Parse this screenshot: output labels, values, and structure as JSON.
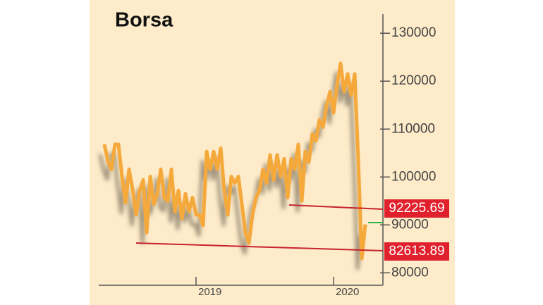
{
  "chart_data": {
    "type": "line",
    "title": "Borsa",
    "categories": [
      null,
      null,
      null,
      null,
      null,
      null,
      null,
      null,
      null,
      null,
      null,
      null,
      null,
      null,
      null,
      null,
      null,
      null,
      null,
      null,
      null,
      null,
      null,
      null,
      null,
      null,
      "2019",
      null,
      null,
      null,
      null,
      null,
      null,
      null,
      null,
      null,
      null,
      null,
      null,
      null,
      null,
      null,
      null,
      null,
      null,
      null,
      null,
      null,
      null,
      null,
      null,
      null,
      null,
      null,
      null,
      null,
      null,
      null,
      null,
      null,
      null,
      null,
      null,
      null,
      null,
      "2020",
      null,
      null,
      null,
      null,
      null,
      null,
      null,
      null,
      null
    ],
    "values": [
      106800,
      103400,
      101600,
      106800,
      106800,
      100100,
      94600,
      101600,
      97500,
      92100,
      97200,
      99400,
      88400,
      100100,
      94300,
      96500,
      101600,
      95700,
      95000,
      101600,
      92800,
      97200,
      91300,
      96500,
      92800,
      95700,
      92100,
      92100,
      89900,
      105300,
      101600,
      105300,
      101600,
      106000,
      97200,
      92100,
      100100,
      98700,
      100100,
      94300,
      88400,
      86200,
      92100,
      95700,
      97200,
      101600,
      98700,
      104600,
      99400,
      104600,
      100100,
      103800,
      95700,
      103800,
      101600,
      106800,
      95000,
      105300,
      103100,
      109000,
      107500,
      111900,
      110400,
      114800,
      117800,
      113400,
      119300,
      123700,
      117800,
      121500,
      117100,
      121500,
      103800,
      83000,
      90100
    ],
    "color": "#f6a93a",
    "ylim": [
      77400,
      134000
    ],
    "yticks": [
      80000,
      90000,
      100000,
      110000,
      120000,
      130000
    ],
    "annotations": [
      "92225.69",
      "82613.89"
    ],
    "grid": false
  }
}
